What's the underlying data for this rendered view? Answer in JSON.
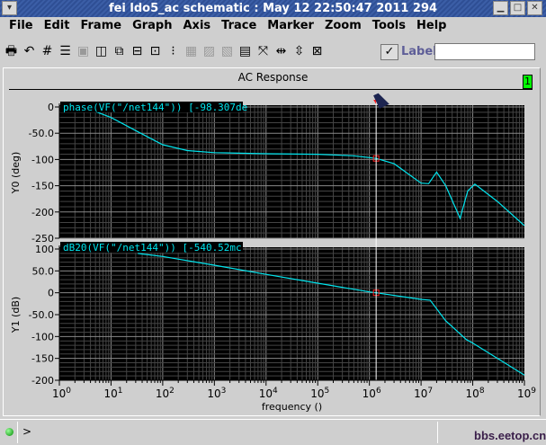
{
  "window": {
    "title": "fei ldo5_ac schematic : May 12 22:50:47 2011 294"
  },
  "menu": [
    "File",
    "Edit",
    "Frame",
    "Graph",
    "Axis",
    "Trace",
    "Marker",
    "Zoom",
    "Tools",
    "Help"
  ],
  "toolbar": {
    "icons": [
      {
        "name": "print-icon",
        "glyph": "🖶",
        "enabled": true
      },
      {
        "name": "undo-icon",
        "glyph": "↶",
        "enabled": true
      },
      {
        "name": "grid-icon",
        "glyph": "#",
        "enabled": true
      },
      {
        "name": "strip-icon",
        "glyph": "☰",
        "enabled": true
      },
      {
        "name": "overlay-icon",
        "glyph": "▣",
        "enabled": false
      },
      {
        "name": "split-icon",
        "glyph": "◫",
        "enabled": true
      },
      {
        "name": "copy-icon",
        "glyph": "⧉",
        "enabled": true
      },
      {
        "name": "move-icon",
        "glyph": "⊟",
        "enabled": true
      },
      {
        "name": "window-icon",
        "glyph": "⊡",
        "enabled": true
      },
      {
        "name": "legend-icon",
        "glyph": "⁝",
        "enabled": true
      },
      {
        "name": "table-icon",
        "glyph": "▦",
        "enabled": false
      },
      {
        "name": "bus-icon",
        "glyph": "▨",
        "enabled": false
      },
      {
        "name": "analog-icon",
        "glyph": "▧",
        "enabled": false
      },
      {
        "name": "calculator-icon",
        "glyph": "▤",
        "enabled": true
      },
      {
        "name": "zoom-fit-icon",
        "glyph": "⤧",
        "enabled": true
      },
      {
        "name": "zoom-x-icon",
        "glyph": "⇹",
        "enabled": true
      },
      {
        "name": "zoom-y-icon",
        "glyph": "⇳",
        "enabled": true
      },
      {
        "name": "zoom-in-icon",
        "glyph": "⊠",
        "enabled": true
      }
    ],
    "label_checked": true,
    "label_text": "Label",
    "label_input_value": ""
  },
  "panel": {
    "title": "AC Response",
    "window_number": "1"
  },
  "status": {
    "prompt": ">",
    "watermark": "bbs.eetop.cn"
  },
  "chart_data": [
    {
      "type": "line",
      "trace_label": "phase(VF(\"/net144\"))  [-98.307de",
      "ylabel": "Y0 (deg)",
      "xscale": "log",
      "xlim": [
        1,
        1000000000.0
      ],
      "ylim": [
        -250,
        0
      ],
      "yticks": [
        "0",
        "-50.0",
        "-100",
        "-150",
        "-200",
        "-250"
      ],
      "grid": true,
      "color": "#00e5ee",
      "x": [
        4,
        10,
        30,
        100,
        300,
        1000,
        10000.0,
        100000.0,
        500000.0,
        1350000.0,
        3000000.0,
        10000000.0,
        14000000.0,
        20000000.0,
        30000000.0,
        57000000.0,
        80000000.0,
        110000000.0,
        300000000.0,
        1000000000.0
      ],
      "y": [
        -5,
        -20,
        -45,
        -72,
        -83,
        -87,
        -89,
        -90,
        -93,
        -98,
        -108,
        -145,
        -146,
        -124,
        -150,
        -212,
        -160,
        -147,
        -180,
        -226
      ]
    },
    {
      "type": "line",
      "trace_label": "dB20(VF(\"/net144\"))  [-540.52mc",
      "ylabel": "Y1 (dB)",
      "xlabel": "frequency ()",
      "xscale": "log",
      "xlim": [
        1,
        1000000000.0
      ],
      "ylim": [
        -200,
        100
      ],
      "yticks": [
        "100",
        "50.0",
        "0",
        "-50.0",
        "-100",
        "-150",
        "-200"
      ],
      "xticks": [
        "0",
        "1",
        "2",
        "3",
        "4",
        "5",
        "6",
        "7",
        "8",
        "9"
      ],
      "grid": true,
      "color": "#00e5ee",
      "x": [
        33,
        100,
        1000,
        10000.0,
        100000.0,
        1000000.0,
        1350000.0,
        10000000.0,
        15000000.0,
        30000000.0,
        75000000.0,
        100000000.0,
        1000000000.0
      ],
      "y": [
        90,
        83,
        63,
        42,
        22,
        2,
        0,
        -15,
        -17,
        -64,
        -107,
        -115,
        -188
      ]
    }
  ],
  "marker": {
    "frequency": 1350000.0,
    "color": "#ff2020"
  }
}
